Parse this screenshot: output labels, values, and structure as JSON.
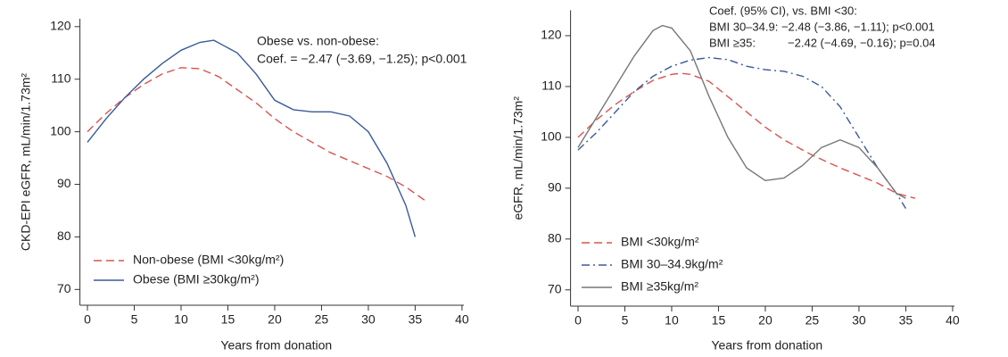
{
  "chart_data": [
    {
      "type": "line",
      "y_label": "CKD-EPI eGFR, mL/min/1.73m²",
      "x_label": "Years from donation",
      "annotations": [
        "Obese vs. non-obese:",
        "Coef. = −2.47 (−3.69, −1.25); p<0.001"
      ],
      "xlim": [
        -0.8,
        40.2
      ],
      "xticks": [
        0,
        5,
        10,
        15,
        20,
        25,
        30,
        35,
        40
      ],
      "ylim": [
        67,
        121.5
      ],
      "yticks": [
        70,
        80,
        90,
        100,
        110,
        120
      ],
      "legend": "lower-left",
      "series": [
        {
          "name": "Non-obese (BMI <30kg/m²)",
          "color": "#d9534f",
          "style": "dashed",
          "x": [
            0,
            2,
            4,
            6,
            8,
            10,
            12,
            14,
            16,
            18,
            20,
            22,
            24,
            26,
            28,
            30,
            32,
            34,
            36
          ],
          "values": [
            100,
            103.5,
            106.5,
            109,
            111,
            112.2,
            112,
            110.5,
            108,
            105.5,
            102.5,
            100,
            98,
            96,
            94.5,
            93,
            91.5,
            89.5,
            87
          ]
        },
        {
          "name": "Obese (BMI ≥30kg/m²)",
          "color": "#3a5a9a",
          "style": "solid",
          "x": [
            0,
            2,
            4,
            6,
            8,
            10,
            12,
            13.5,
            16,
            18,
            20,
            22,
            24,
            26,
            28,
            30,
            32,
            34,
            35
          ],
          "values": [
            98,
            102.5,
            106.5,
            110,
            113,
            115.5,
            117,
            117.4,
            115,
            111,
            106,
            104.2,
            103.8,
            103.8,
            103,
            100,
            94,
            86,
            80
          ]
        }
      ]
    },
    {
      "type": "line",
      "y_label": "eGFR, mL/min/1.73m²",
      "x_label": "Years from donation",
      "annotations": [
        "Coef. (95% CI), vs. BMI <30:",
        "BMI 30–34.9: −2.48 (−3.86, −1.11); p<0.001",
        "BMI ≥35:          −2.42 (−4.69, −0.16); p=0.04"
      ],
      "xlim": [
        -0.8,
        40.2
      ],
      "xticks": [
        0,
        5,
        10,
        15,
        20,
        25,
        30,
        35,
        40
      ],
      "ylim": [
        66.8,
        125
      ],
      "yticks": [
        70,
        80,
        90,
        100,
        110,
        120
      ],
      "legend": "lower-left",
      "series": [
        {
          "name": "BMI <30kg/m²",
          "color": "#d9534f",
          "style": "dashed",
          "x": [
            0,
            2,
            4,
            6,
            8,
            10,
            11,
            12,
            14,
            16,
            18,
            20,
            22,
            25,
            28,
            30,
            32,
            34,
            36
          ],
          "values": [
            100,
            103.5,
            106.5,
            109,
            111.2,
            112.4,
            112.6,
            112.4,
            111,
            108,
            105,
            102,
            99.5,
            96.5,
            94,
            92.5,
            91,
            89,
            88
          ]
        },
        {
          "name": "BMI 30–34.9kg/m²",
          "color": "#3a5a9a",
          "style": "dashdot",
          "x": [
            0,
            2,
            4,
            6,
            8,
            10,
            12,
            14,
            16,
            18,
            20,
            22,
            24,
            26,
            28,
            30,
            32,
            34,
            35
          ],
          "values": [
            97.5,
            101,
            105,
            109,
            112,
            114,
            115.2,
            115.7,
            115.3,
            114,
            113.3,
            113,
            112,
            110,
            106,
            100,
            94,
            89,
            86
          ]
        },
        {
          "name": "BMI ≥35kg/m²",
          "color": "#777777",
          "style": "solid",
          "x": [
            0,
            2,
            4,
            6,
            8,
            9,
            10,
            12,
            14,
            16,
            18,
            20,
            22,
            24,
            26,
            28,
            30,
            32,
            34,
            35
          ],
          "values": [
            98,
            104,
            110,
            116,
            121,
            122,
            121.5,
            117,
            108,
            100,
            94,
            91.5,
            92,
            94.5,
            98,
            99.5,
            98,
            94,
            89,
            88
          ]
        }
      ]
    }
  ]
}
